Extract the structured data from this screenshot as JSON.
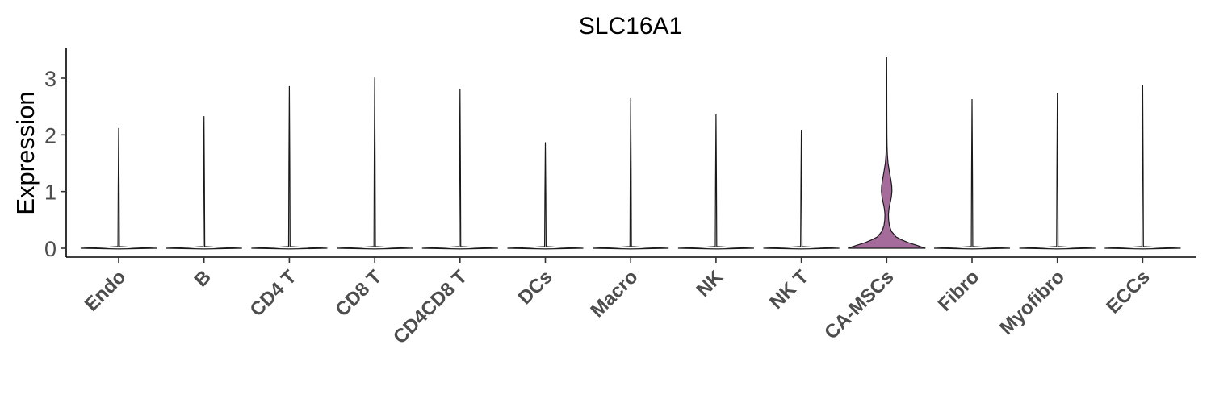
{
  "chart_data": {
    "type": "violin",
    "title": "SLC16A1",
    "xlabel": "",
    "ylabel": "Expression",
    "ylim": [
      -0.15,
      3.55
    ],
    "yticks": [
      0,
      1,
      2,
      3
    ],
    "grid": false,
    "legend": "none",
    "categories": [
      "Endo",
      "B",
      "CD4 T",
      "CD8 T",
      "CD4CD8 T",
      "DCs",
      "Macro",
      "NK",
      "NK T",
      "CA-MSCs",
      "Fibro",
      "Myofibro",
      "ECCs"
    ],
    "colors": {
      "default_fill": "#ffffff",
      "highlight_fill": "#a56b9b",
      "outline": "#1a1a1a"
    },
    "max_values": [
      2.12,
      2.33,
      2.86,
      3.01,
      2.81,
      1.87,
      2.66,
      2.36,
      2.09,
      3.37,
      2.63,
      2.73,
      2.88
    ],
    "highlight_category": "CA-MSCs",
    "ca_mscs_density": [
      [
        0.0,
        1.0
      ],
      [
        0.05,
        0.78
      ],
      [
        0.1,
        0.55
      ],
      [
        0.15,
        0.38
      ],
      [
        0.2,
        0.24
      ],
      [
        0.3,
        0.12
      ],
      [
        0.4,
        0.07
      ],
      [
        0.5,
        0.05
      ],
      [
        0.6,
        0.045
      ],
      [
        0.7,
        0.06
      ],
      [
        0.8,
        0.09
      ],
      [
        0.9,
        0.12
      ],
      [
        1.0,
        0.135
      ],
      [
        1.1,
        0.13
      ],
      [
        1.2,
        0.11
      ],
      [
        1.35,
        0.07
      ],
      [
        1.5,
        0.035
      ],
      [
        1.65,
        0.018
      ],
      [
        1.8,
        0.01
      ],
      [
        2.0,
        0.006
      ],
      [
        2.3,
        0.004
      ],
      [
        2.6,
        0.003
      ],
      [
        3.0,
        0.002
      ],
      [
        3.37,
        0.0
      ]
    ]
  }
}
